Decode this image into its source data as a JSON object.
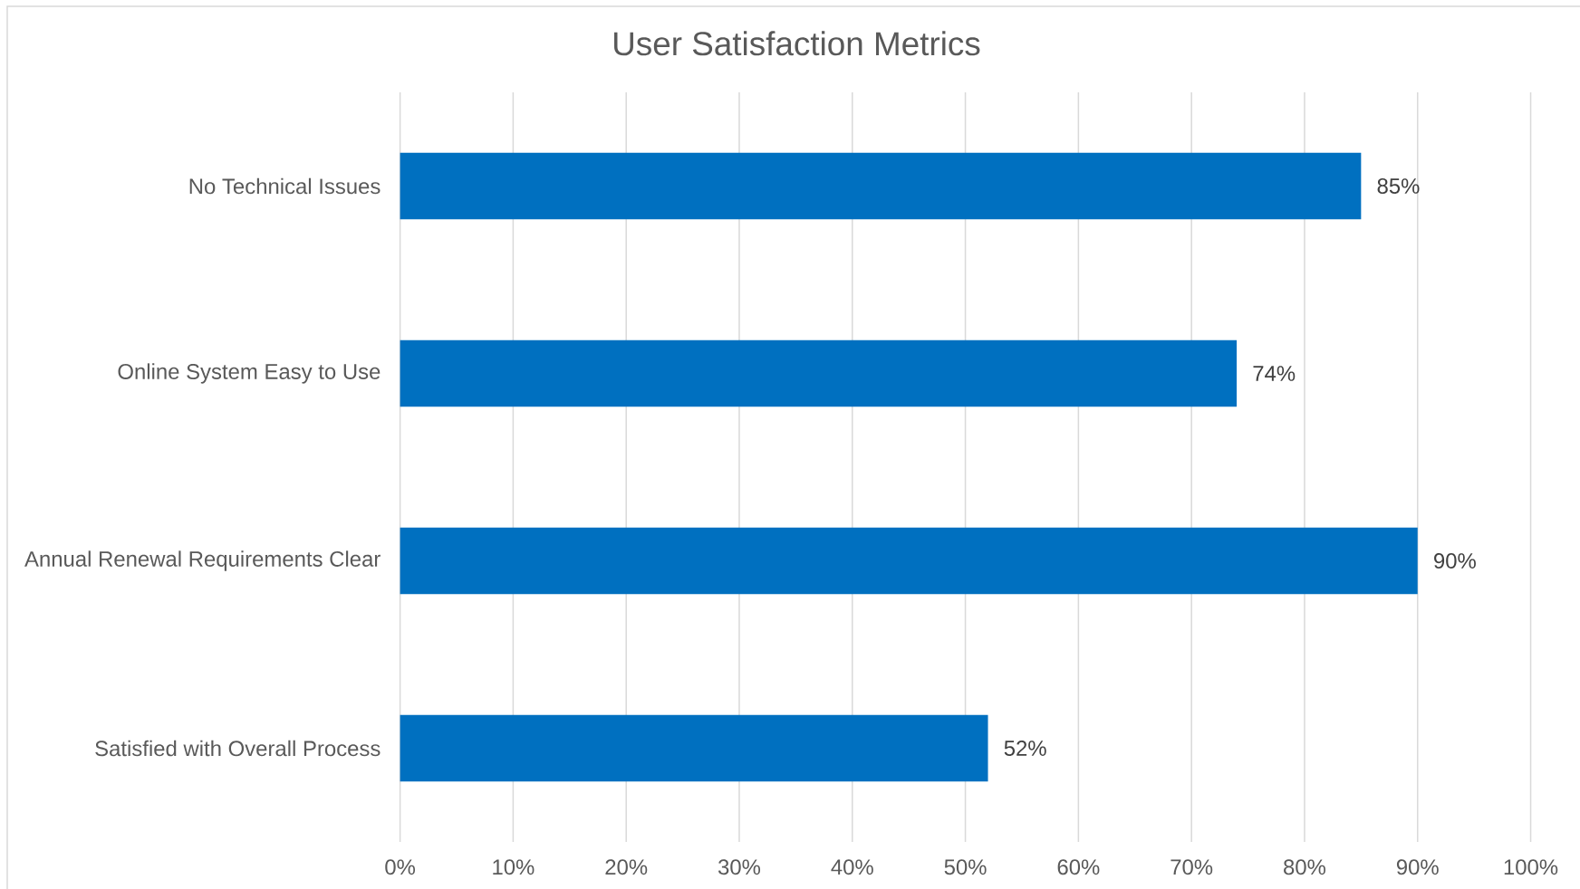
{
  "chart_data": {
    "type": "bar",
    "orientation": "horizontal",
    "title": "User Satisfaction Metrics",
    "categories": [
      "No Technical Issues",
      "Online System Easy to Use",
      "Annual Renewal Requirements Clear",
      "Satisfied with Overall Process"
    ],
    "values": [
      85,
      74,
      90,
      52
    ],
    "color": "#0070c0",
    "value_labels": [
      "85%",
      "74%",
      "90%",
      "52%"
    ],
    "xlim": [
      0,
      100
    ],
    "xticks": [
      {
        "value": 0,
        "label": "0%"
      },
      {
        "value": 10,
        "label": "10%"
      },
      {
        "value": 20,
        "label": "20%"
      },
      {
        "value": 30,
        "label": "30%"
      },
      {
        "value": 40,
        "label": "40%"
      },
      {
        "value": 50,
        "label": "50%"
      },
      {
        "value": 60,
        "label": "60%"
      },
      {
        "value": 70,
        "label": "70%"
      },
      {
        "value": 80,
        "label": "80%"
      },
      {
        "value": 90,
        "label": "90%"
      },
      {
        "value": 100,
        "label": "100%"
      }
    ],
    "grid": "x"
  }
}
